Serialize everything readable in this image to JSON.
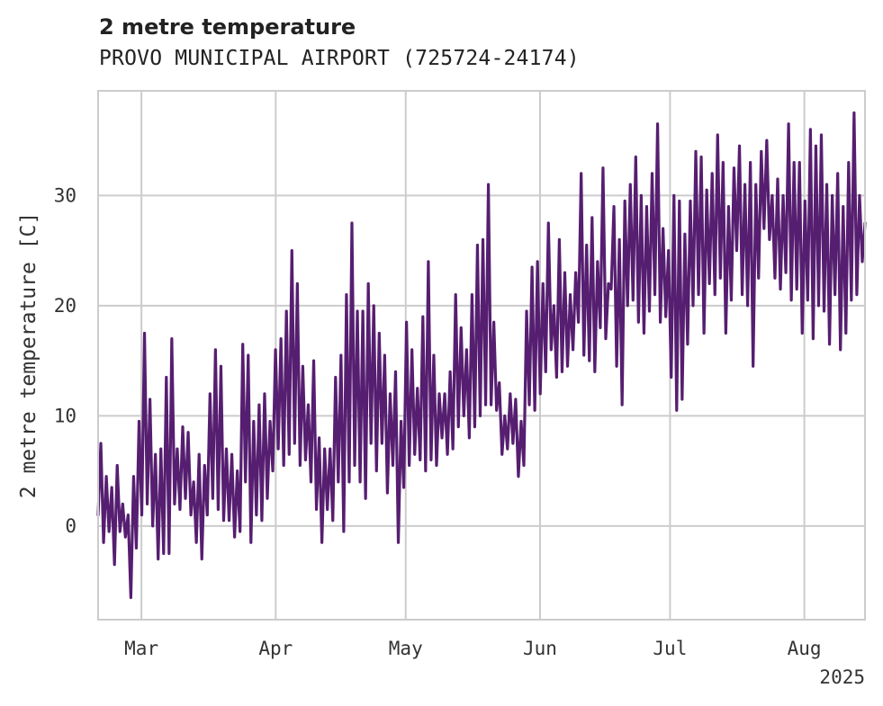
{
  "title": "2 metre temperature",
  "subtitle": "PROVO MUNICIPAL AIRPORT (725724-24174)",
  "chart_data": {
    "type": "line",
    "title": "2 metre temperature",
    "subtitle": "PROVO MUNICIPAL AIRPORT (725724-24174)",
    "xlabel": "",
    "ylabel": "2 metre temperature [C]",
    "x_start": "2025-02-19T00:00",
    "x_end": "2025-08-15T00:00",
    "xlim": [
      "2025-02-19",
      "2025-08-15"
    ],
    "ylim": [
      -8.5,
      39.5
    ],
    "x_tick_labels": [
      "Mar",
      "Apr",
      "May",
      "Jun",
      "Jul",
      "Aug"
    ],
    "x_tick_dates": [
      "2025-03-01",
      "2025-04-01",
      "2025-05-01",
      "2025-06-01",
      "2025-07-01",
      "2025-08-01"
    ],
    "x_year_label": "2025",
    "y_ticks": [
      0,
      10,
      20,
      30
    ],
    "grid": true,
    "series": [
      {
        "color": "#561e70",
        "sampling": "12-hourly (approximate daily minimum and maximum)",
        "values": [
          1,
          7.5,
          -1.5,
          4.5,
          -0.5,
          3.5,
          -3.5,
          5.5,
          -0.5,
          2,
          -1,
          1,
          -6.5,
          4.5,
          -2,
          9.5,
          1,
          17.5,
          2,
          11.5,
          0,
          6.5,
          -3,
          7,
          -2.5,
          13.5,
          -2.5,
          17,
          2,
          7,
          1.5,
          9,
          2.5,
          8.5,
          1,
          4,
          -1.5,
          6.5,
          -3,
          5.5,
          1,
          12,
          2.5,
          16,
          1.5,
          14.5,
          0.5,
          7,
          0.5,
          6.5,
          -1,
          5,
          -0.5,
          16.5,
          4,
          15.5,
          -1.5,
          9.5,
          1,
          11,
          0.5,
          12,
          2.5,
          9.5,
          5,
          16,
          7,
          17,
          5.5,
          19.5,
          6.5,
          25,
          7.5,
          22,
          5.5,
          14.5,
          6,
          11,
          4,
          15,
          1.5,
          8,
          -1.5,
          7,
          1.5,
          7,
          0.5,
          13.5,
          4,
          15.5,
          -0.5,
          21,
          4,
          27.5,
          5.5,
          19.5,
          4,
          19.5,
          2.5,
          22,
          7.5,
          20,
          5,
          17.5,
          7.5,
          15.5,
          3,
          12,
          5.5,
          14,
          -1.5,
          9.5,
          3.5,
          18.5,
          5.5,
          16,
          6.5,
          12.5,
          6,
          19,
          5,
          24,
          6,
          15.5,
          5.5,
          12,
          8,
          12,
          6.5,
          14,
          7,
          21,
          9,
          18,
          10,
          16,
          8,
          21,
          9,
          25.5,
          10,
          26,
          11,
          31,
          11,
          18.5,
          10.5,
          13,
          6.5,
          10,
          7,
          12,
          7.5,
          11.5,
          4.5,
          9.5,
          5.5,
          19.5,
          11,
          23.5,
          10.5,
          24,
          12,
          22,
          14,
          27.5,
          16,
          20,
          13.5,
          26,
          14,
          23,
          14.5,
          21,
          16,
          23,
          18.5,
          32,
          15.5,
          25.5,
          15,
          28,
          14,
          24,
          18,
          32.5,
          17,
          22,
          21.5,
          29,
          14.5,
          26,
          11,
          29.5,
          20,
          31,
          20.5,
          33.5,
          18.5,
          30,
          17.5,
          29,
          19.5,
          32,
          21,
          36.5,
          18.5,
          27,
          19,
          25,
          13.5,
          30,
          10.5,
          29.5,
          11.5,
          26.5,
          16.5,
          29.5,
          20,
          34,
          21,
          33.5,
          17.5,
          30.5,
          22,
          32,
          21,
          35.5,
          22.5,
          33,
          17.5,
          29,
          20.5,
          32.5,
          25,
          34.5,
          21,
          31,
          20,
          33,
          14.5,
          31,
          22.5,
          34,
          27,
          35,
          26,
          30,
          22.5,
          31.5,
          21.5,
          30,
          23,
          36.5,
          20.5,
          33,
          21.5,
          33,
          17.5,
          29.5,
          20.5,
          36,
          17,
          34.5,
          20,
          35.5,
          19.5,
          31,
          16.5,
          30,
          21,
          32,
          16,
          29,
          17.5,
          33,
          20.5,
          37.5,
          21,
          30,
          24,
          27.5
        ]
      }
    ]
  }
}
